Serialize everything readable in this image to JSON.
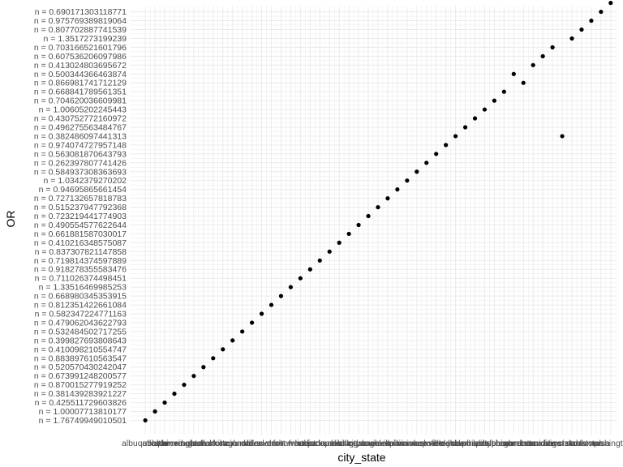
{
  "chart_data": {
    "type": "scatter",
    "xlabel": "city_state",
    "ylabel": "OR",
    "grid": true,
    "point_color": "#000000",
    "grid_color": "#ebebeb",
    "x_tick_labels": [
      "albuquerque",
      "atlanta",
      "baltimore",
      "baton rouge",
      "birmingham",
      "boston",
      "buffalo",
      "charlotte",
      "chicago",
      "cincinnati",
      "columbus",
      "dallas",
      "denver",
      "detroit",
      "durham",
      "fort worth",
      "fresno",
      "houston",
      "indianapolis",
      "jacksonville",
      "kansas city",
      "las vegas",
      "long beach",
      "los angeles",
      "louisville",
      "memphis",
      "miami",
      "milwaukee",
      "minneapolis",
      "nashville",
      "new orleans",
      "new york",
      "oakland",
      "oklahoma city",
      "omaha",
      "philadelphia",
      "pittsburgh",
      "richmond",
      "sacramento",
      "san antonio",
      "san bernardino",
      "san diego",
      "san francisco",
      "savannah",
      "st. louis",
      "stockton",
      "tampa",
      "tulsa",
      "washington"
    ],
    "y_categories": [
      "n = 1.76749949010501",
      "n = 1.00007713810177",
      "n = 0.425511729603826",
      "n = 0.381439283921227",
      "n = 0.870015277919252",
      "n = 0.673991248200577",
      "n = 0.520570430242047",
      "n = 0.883897610563547",
      "n = 0.410098210554747",
      "n = 0.399827693808643",
      "n = 0.532484502717255",
      "n = 0.479062043622793",
      "n = 0.582347224771163",
      "n = 0.812351422661084",
      "n = 0.668980345353915",
      "n = 1.33516469985253",
      "n = 0.711026374498451",
      "n = 0.918278355583476",
      "n = 0.719814374597889",
      "n = 0.837307821147858",
      "n = 0.410216348575087",
      "n = 0.661881587030017",
      "n = 0.490554577622644",
      "n = 0.723219441774903",
      "n = 0.515237947792368",
      "n = 0.727132657818783",
      "n = 0.94695865661454",
      "n = 1.0342379270202",
      "n = 0.584937308363693",
      "n = 0.262397807741426",
      "n = 0.563081870643793",
      "n = 0.974074727957148",
      "n = 0.382486097441313",
      "n = 0.496275563484767",
      "n = 0.430752772160972",
      "n = 1.00605202245443",
      "n = 0.704620036609981",
      "n = 0.668841789561351",
      "n = 0.866981741712129",
      "n = 0.500344366463874",
      "n = 0.413024803695672",
      "n = 0.607536206097986",
      "n = 0.703166521601796",
      "n = 1.3517273199239",
      "n = 0.807702887741539",
      "n = 0.975769389819064",
      "n = 0.690171303118771"
    ],
    "points": [
      {
        "x": 1,
        "y": 1
      },
      {
        "x": 2,
        "y": 2
      },
      {
        "x": 3,
        "y": 3
      },
      {
        "x": 4,
        "y": 4
      },
      {
        "x": 5,
        "y": 5
      },
      {
        "x": 6,
        "y": 6
      },
      {
        "x": 7,
        "y": 7
      },
      {
        "x": 8,
        "y": 8
      },
      {
        "x": 9,
        "y": 9
      },
      {
        "x": 10,
        "y": 10
      },
      {
        "x": 11,
        "y": 11
      },
      {
        "x": 12,
        "y": 12
      },
      {
        "x": 13,
        "y": 13
      },
      {
        "x": 14,
        "y": 14
      },
      {
        "x": 15,
        "y": 15
      },
      {
        "x": 16,
        "y": 16
      },
      {
        "x": 17,
        "y": 17
      },
      {
        "x": 18,
        "y": 18
      },
      {
        "x": 19,
        "y": 19
      },
      {
        "x": 20,
        "y": 20
      },
      {
        "x": 21,
        "y": 21
      },
      {
        "x": 22,
        "y": 22
      },
      {
        "x": 23,
        "y": 23
      },
      {
        "x": 24,
        "y": 24
      },
      {
        "x": 25,
        "y": 25
      },
      {
        "x": 26,
        "y": 26
      },
      {
        "x": 27,
        "y": 27
      },
      {
        "x": 28,
        "y": 28
      },
      {
        "x": 29,
        "y": 29
      },
      {
        "x": 30,
        "y": 30
      },
      {
        "x": 31,
        "y": 31
      },
      {
        "x": 32,
        "y": 32
      },
      {
        "x": 33,
        "y": 33
      },
      {
        "x": 34,
        "y": 34
      },
      {
        "x": 35,
        "y": 35
      },
      {
        "x": 36,
        "y": 36
      },
      {
        "x": 37,
        "y": 37
      },
      {
        "x": 38,
        "y": 38
      },
      {
        "x": 39,
        "y": 40
      },
      {
        "x": 40,
        "y": 39
      },
      {
        "x": 41,
        "y": 41
      },
      {
        "x": 42,
        "y": 42
      },
      {
        "x": 43,
        "y": 43
      },
      {
        "x": 44,
        "y": 33
      },
      {
        "x": 45,
        "y": 44
      },
      {
        "x": 46,
        "y": 45
      },
      {
        "x": 47,
        "y": 46
      },
      {
        "x": 48,
        "y": 47
      },
      {
        "x": 49,
        "y": 48
      }
    ]
  }
}
